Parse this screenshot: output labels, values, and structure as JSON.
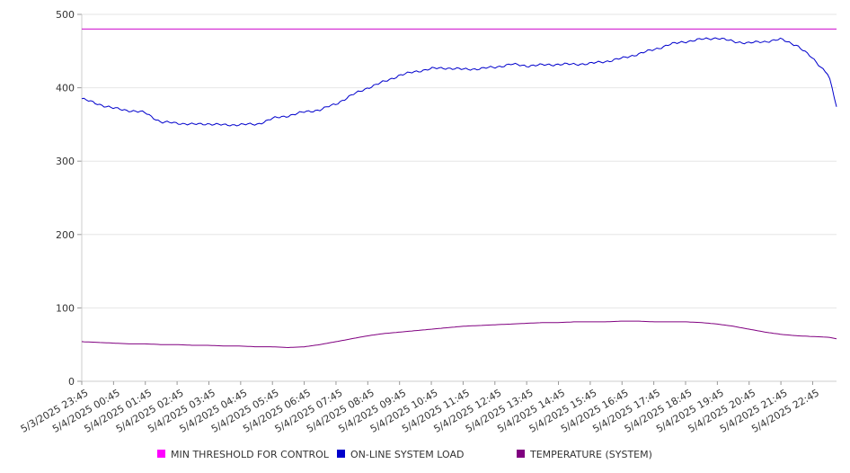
{
  "chart_data": {
    "type": "line",
    "title": "",
    "xlabel": "",
    "ylabel": "",
    "ylim": [
      0,
      500
    ],
    "yticks": [
      0,
      100,
      200,
      300,
      400,
      500
    ],
    "grid": true,
    "legend_position": "bottom",
    "x_ticks": [
      "5/3/2025 23:45",
      "5/4/2025 00:45",
      "5/4/2025 01:45",
      "5/4/2025 02:45",
      "5/4/2025 03:45",
      "5/4/2025 04:45",
      "5/4/2025 05:45",
      "5/4/2025 06:45",
      "5/4/2025 07:45",
      "5/4/2025 08:45",
      "5/4/2025 09:45",
      "5/4/2025 10:45",
      "5/4/2025 11:45",
      "5/4/2025 12:45",
      "5/4/2025 13:45",
      "5/4/2025 14:45",
      "5/4/2025 15:45",
      "5/4/2025 16:45",
      "5/4/2025 17:45",
      "5/4/2025 18:45",
      "5/4/2025 19:45",
      "5/4/2025 20:45",
      "5/4/2025 21:45",
      "5/4/2025 22:45"
    ],
    "x_hours": [
      0,
      0.5,
      1,
      1.5,
      2,
      2.5,
      3,
      3.5,
      4,
      4.5,
      5,
      5.5,
      6,
      6.5,
      7,
      7.5,
      8,
      8.5,
      9,
      9.5,
      10,
      10.5,
      11,
      11.5,
      12,
      12.5,
      13,
      13.5,
      14,
      14.5,
      15,
      15.5,
      16,
      16.5,
      17,
      17.5,
      18,
      18.5,
      19,
      19.5,
      20,
      20.5,
      21,
      21.5,
      22,
      22.5,
      23,
      23.5,
      23.75
    ],
    "series": [
      {
        "name": "MIN THRESHOLD FOR CONTROL",
        "color": "#cc00cc",
        "values": [
          480,
          480,
          480,
          480,
          480,
          480,
          480,
          480,
          480,
          480,
          480,
          480,
          480,
          480,
          480,
          480,
          480,
          480,
          480,
          480,
          480,
          480,
          480,
          480,
          480,
          480,
          480,
          480,
          480,
          480,
          480,
          480,
          480,
          480,
          480,
          480,
          480,
          480,
          480,
          480,
          480,
          480,
          480,
          480,
          480,
          480,
          480,
          480,
          480
        ]
      },
      {
        "name": "ON-LINE SYSTEM LOAD",
        "color": "#0000cc",
        "values": [
          385,
          378,
          372,
          369,
          366,
          353,
          352,
          350,
          351,
          349,
          350,
          350,
          358,
          362,
          367,
          370,
          378,
          390,
          400,
          408,
          417,
          422,
          426,
          427,
          425,
          426,
          428,
          432,
          430,
          431,
          432,
          432,
          433,
          436,
          440,
          446,
          452,
          459,
          463,
          466,
          468,
          463,
          461,
          463,
          466,
          458,
          440,
          418,
          374
        ]
      },
      {
        "name": "TEMPERATURE (SYSTEM)",
        "color": "#800080",
        "values": [
          54,
          53,
          52,
          51,
          51,
          50,
          50,
          49,
          49,
          48,
          48,
          47,
          47,
          46,
          47,
          50,
          54,
          58,
          62,
          65,
          67,
          69,
          71,
          73,
          75,
          76,
          77,
          78,
          79,
          80,
          80,
          81,
          81,
          81,
          82,
          82,
          81,
          81,
          81,
          80,
          78,
          75,
          71,
          67,
          64,
          62,
          61,
          60,
          58
        ]
      }
    ]
  }
}
